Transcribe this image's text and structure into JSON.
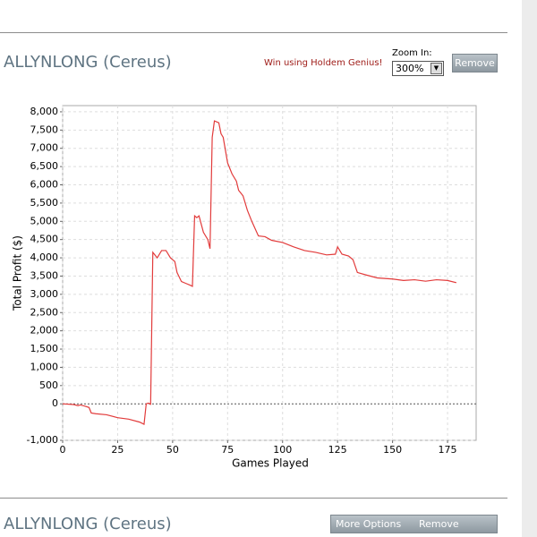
{
  "header": {
    "title": "ALLYNLONG (Cereus)",
    "promo": "Win using Holdem Genius!",
    "zoom_label": "Zoom In:",
    "zoom_value": "300%",
    "remove": "Remove"
  },
  "chart_data": {
    "type": "line",
    "x_label": "Games Played",
    "y_label": "Total Profit ($)",
    "color": "#e23b3b",
    "x": [
      0,
      5,
      7,
      8,
      10,
      12,
      13,
      15,
      20,
      25,
      30,
      35,
      37,
      38,
      39,
      40,
      41,
      43,
      45,
      47,
      49,
      51,
      52,
      54,
      56,
      58,
      59,
      60,
      61,
      62,
      64,
      66,
      67,
      68,
      69,
      71,
      72,
      73,
      75,
      77,
      79,
      80,
      82,
      84,
      86,
      89,
      92,
      95,
      100,
      105,
      110,
      115,
      120,
      124,
      125,
      127,
      130,
      132,
      134,
      138,
      143,
      150,
      155,
      160,
      165,
      170,
      175,
      179
    ],
    "values": [
      0,
      -20,
      -50,
      -30,
      -60,
      -100,
      -250,
      -270,
      -300,
      -380,
      -420,
      -500,
      -560,
      0,
      20,
      -10,
      4150,
      4000,
      4200,
      4200,
      4000,
      3900,
      3600,
      3350,
      3300,
      3250,
      3220,
      5150,
      5100,
      5150,
      4700,
      4500,
      4250,
      7300,
      7750,
      7700,
      7400,
      7300,
      6600,
      6300,
      6100,
      5850,
      5700,
      5300,
      5000,
      4600,
      4580,
      4480,
      4420,
      4300,
      4200,
      4150,
      4080,
      4100,
      4300,
      4100,
      4050,
      3950,
      3600,
      3530,
      3450,
      3420,
      3380,
      3400,
      3360,
      3400,
      3380,
      3320
    ],
    "xlim": [
      0,
      188
    ],
    "ylim": [
      -1000,
      8170
    ],
    "xticks": [
      0,
      25,
      50,
      75,
      100,
      125,
      150,
      175
    ],
    "yticks": [
      {
        "value": -1000,
        "label": "-1,000"
      },
      0,
      500,
      {
        "value": 1000,
        "label": "1,000"
      },
      {
        "value": 1500,
        "label": "1,500"
      },
      {
        "value": 2000,
        "label": "2,000"
      },
      {
        "value": 2500,
        "label": "2,500"
      },
      {
        "value": 3000,
        "label": "3,000"
      },
      {
        "value": 3500,
        "label": "3,500"
      },
      {
        "value": 4000,
        "label": "4,000"
      },
      {
        "value": 4500,
        "label": "4,500"
      },
      {
        "value": 5000,
        "label": "5,000"
      },
      {
        "value": 5500,
        "label": "5,500"
      },
      {
        "value": 6000,
        "label": "6,000"
      },
      {
        "value": 6500,
        "label": "6,500"
      },
      {
        "value": 7000,
        "label": "7,000"
      },
      {
        "value": 7500,
        "label": "7,500"
      },
      {
        "value": 8000,
        "label": "8,000"
      }
    ],
    "grid": true
  },
  "footer": {
    "title": "ALLYNLONG (Cereus)",
    "more_options": "More Options",
    "remove": "Remove"
  }
}
